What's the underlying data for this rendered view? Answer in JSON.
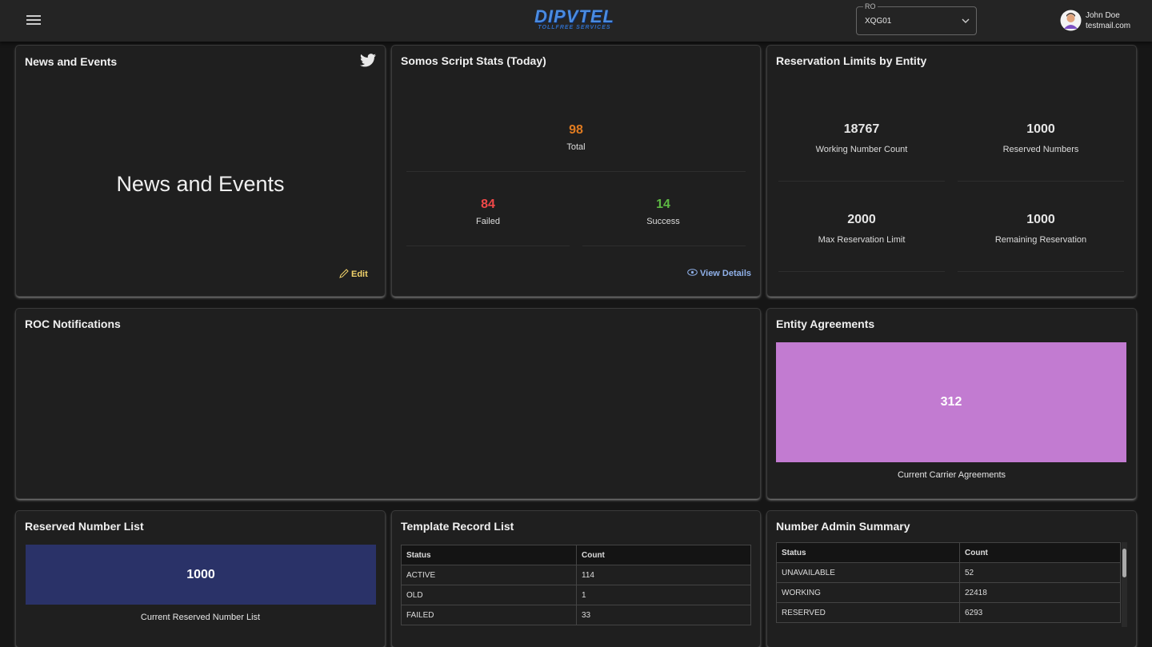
{
  "header": {
    "logo_title": "DIPVTEL",
    "logo_subtitle": "TOLLFREE SERVICES",
    "ro_label": "RO",
    "ro_value": "XQG01",
    "user_name": "John Doe",
    "user_email": "testmail.com"
  },
  "news": {
    "title": "News and Events",
    "heading": "News and Events",
    "edit": "Edit"
  },
  "script_stats": {
    "title": "Somos Script Stats (Today)",
    "total": {
      "value": 98,
      "label": "Total"
    },
    "failed": {
      "value": 84,
      "label": "Failed"
    },
    "success": {
      "value": 14,
      "label": "Success"
    },
    "view_details": "View Details"
  },
  "reservation": {
    "title": "Reservation Limits by Entity",
    "items": [
      {
        "value": 18767,
        "label": "Working Number Count"
      },
      {
        "value": 1000,
        "label": "Reserved Numbers"
      },
      {
        "value": 2000,
        "label": "Max Reservation Limit"
      },
      {
        "value": 1000,
        "label": "Remaining Reservation"
      }
    ]
  },
  "roc": {
    "title": "ROC Notifications"
  },
  "entity_agreements": {
    "title": "Entity Agreements",
    "value": 312,
    "label": "Current Carrier Agreements"
  },
  "reserved_list": {
    "title": "Reserved Number List",
    "value": 1000,
    "label": "Current Reserved Number List"
  },
  "template_records": {
    "title": "Template Record List",
    "columns": [
      "Status",
      "Count"
    ],
    "rows": [
      [
        "ACTIVE",
        114
      ],
      [
        "OLD",
        1
      ],
      [
        "FAILED",
        33
      ]
    ]
  },
  "number_admin": {
    "title": "Number Admin Summary",
    "columns": [
      "Status",
      "Count"
    ],
    "rows": [
      [
        "UNAVAILABLE",
        52
      ],
      [
        "WORKING",
        22418
      ],
      [
        "RESERVED",
        6293
      ]
    ]
  }
}
